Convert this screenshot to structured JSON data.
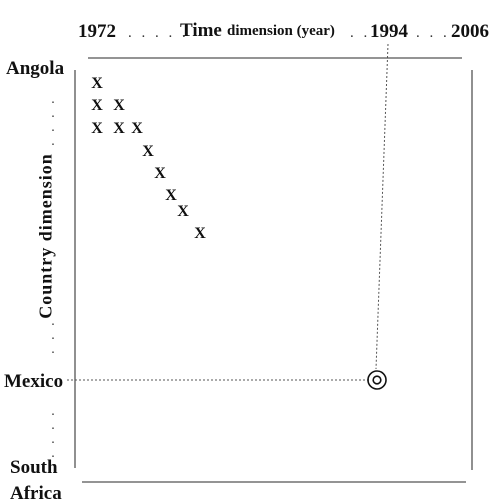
{
  "x_axis": {
    "tick_start": "1972",
    "title_main": "Time",
    "title_rest": "dimension (year)",
    "tick_mid": "1994",
    "tick_end": "2006"
  },
  "y_axis": {
    "title": "Country dimension",
    "top_label": "Angola",
    "mid_label": "Mexico",
    "bottom_label_line1": "South",
    "bottom_label_line2": "Africa"
  },
  "marks": {
    "symbol": "X",
    "count": 12
  },
  "highlight": {
    "country": "Mexico",
    "year": "1994",
    "icon": "target-circle-icon"
  },
  "colors": {
    "ink": "#111111",
    "frame": "#555555",
    "guide": "#555555"
  }
}
